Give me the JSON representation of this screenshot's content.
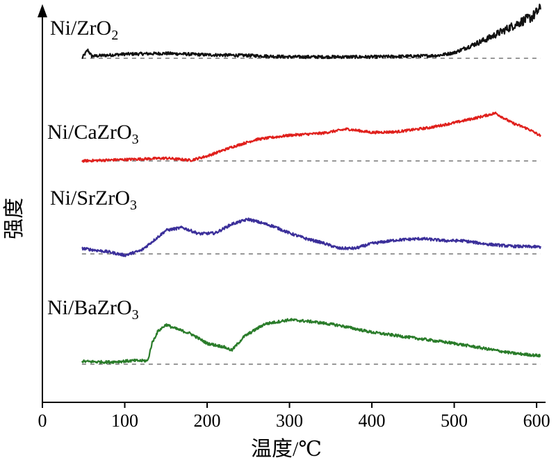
{
  "chart_data": {
    "type": "line",
    "xlabel": "温度/℃",
    "ylabel": "强度",
    "xlim": [
      0,
      605
    ],
    "xticks": [
      0,
      100,
      200,
      300,
      400,
      500,
      600
    ],
    "x_range": [
      48,
      605
    ],
    "y_units": "arbitrary (no y tick labels; curves vertically offset, each with a dashed baseline)",
    "series": [
      {
        "name": "Ni/ZrO",
        "name_sub": "2",
        "color": "#111111",
        "offset": 0,
        "noise": 0.022,
        "points": [
          [
            48,
            0.0
          ],
          [
            55,
            0.12
          ],
          [
            60,
            0.03
          ],
          [
            100,
            0.06
          ],
          [
            150,
            0.07
          ],
          [
            200,
            0.05
          ],
          [
            250,
            0.04
          ],
          [
            300,
            0.02
          ],
          [
            350,
            0.02
          ],
          [
            400,
            0.02
          ],
          [
            450,
            0.03
          ],
          [
            480,
            0.04
          ],
          [
            500,
            0.08
          ],
          [
            520,
            0.18
          ],
          [
            540,
            0.28
          ],
          [
            560,
            0.4
          ],
          [
            580,
            0.52
          ],
          [
            595,
            0.6
          ],
          [
            605,
            0.72
          ]
        ]
      },
      {
        "name": "Ni/CaZrO",
        "name_sub": "3",
        "color": "#e0201c",
        "offset": 1,
        "noise": 0.018,
        "points": [
          [
            48,
            0.0
          ],
          [
            100,
            0.02
          ],
          [
            150,
            0.04
          ],
          [
            180,
            0.01
          ],
          [
            200,
            0.07
          ],
          [
            230,
            0.2
          ],
          [
            260,
            0.31
          ],
          [
            300,
            0.37
          ],
          [
            340,
            0.4
          ],
          [
            370,
            0.46
          ],
          [
            400,
            0.41
          ],
          [
            430,
            0.42
          ],
          [
            470,
            0.48
          ],
          [
            500,
            0.55
          ],
          [
            530,
            0.63
          ],
          [
            550,
            0.69
          ],
          [
            570,
            0.55
          ],
          [
            590,
            0.46
          ],
          [
            605,
            0.36
          ]
        ]
      },
      {
        "name": "Ni/SrZrO",
        "name_sub": "3",
        "color": "#3b2f9a",
        "offset": 2,
        "noise": 0.02,
        "points": [
          [
            48,
            0.08
          ],
          [
            60,
            0.06
          ],
          [
            80,
            0.03
          ],
          [
            100,
            -0.02
          ],
          [
            120,
            0.05
          ],
          [
            140,
            0.24
          ],
          [
            150,
            0.34
          ],
          [
            170,
            0.38
          ],
          [
            190,
            0.29
          ],
          [
            210,
            0.3
          ],
          [
            230,
            0.43
          ],
          [
            250,
            0.5
          ],
          [
            265,
            0.45
          ],
          [
            280,
            0.4
          ],
          [
            300,
            0.3
          ],
          [
            320,
            0.22
          ],
          [
            340,
            0.16
          ],
          [
            360,
            0.08
          ],
          [
            380,
            0.08
          ],
          [
            400,
            0.15
          ],
          [
            430,
            0.2
          ],
          [
            460,
            0.22
          ],
          [
            490,
            0.19
          ],
          [
            510,
            0.19
          ],
          [
            540,
            0.14
          ],
          [
            570,
            0.11
          ],
          [
            605,
            0.1
          ]
        ]
      },
      {
        "name": "Ni/BaZrO",
        "name_sub": "3",
        "color": "#2a7c2a",
        "offset": 3,
        "noise": 0.02,
        "points": [
          [
            48,
            0.04
          ],
          [
            80,
            0.03
          ],
          [
            110,
            0.05
          ],
          [
            128,
            0.05
          ],
          [
            133,
            0.3
          ],
          [
            140,
            0.47
          ],
          [
            150,
            0.57
          ],
          [
            160,
            0.52
          ],
          [
            180,
            0.44
          ],
          [
            200,
            0.3
          ],
          [
            220,
            0.25
          ],
          [
            230,
            0.2
          ],
          [
            245,
            0.4
          ],
          [
            270,
            0.58
          ],
          [
            300,
            0.64
          ],
          [
            330,
            0.61
          ],
          [
            360,
            0.56
          ],
          [
            400,
            0.46
          ],
          [
            450,
            0.38
          ],
          [
            500,
            0.3
          ],
          [
            540,
            0.22
          ],
          [
            570,
            0.16
          ],
          [
            605,
            0.12
          ]
        ]
      }
    ]
  }
}
